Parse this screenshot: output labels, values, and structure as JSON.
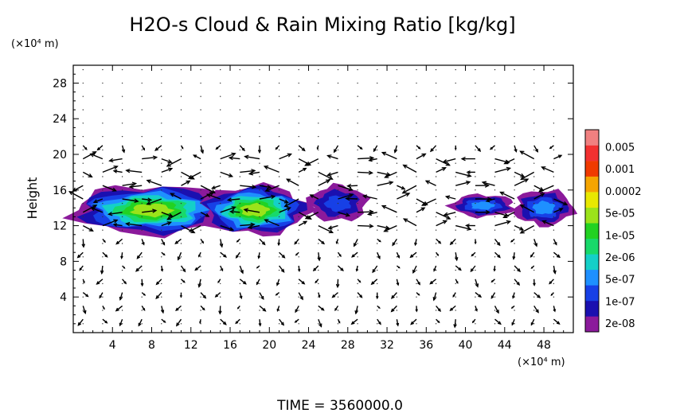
{
  "chart_data": {
    "type": "heatmap",
    "title": "H2O-s Cloud & Rain Mixing Ratio [kg/kg]",
    "ylabel": "Height",
    "y_unit": "(×10⁴ m)",
    "x_unit": "(×10⁴ m)",
    "xlim": [
      0,
      51
    ],
    "ylim": [
      0,
      30
    ],
    "x_ticks": [
      4,
      8,
      12,
      16,
      20,
      24,
      28,
      32,
      36,
      40,
      44,
      48
    ],
    "y_ticks": [
      4,
      8,
      12,
      16,
      20,
      24,
      28
    ],
    "grid": true,
    "footer": "TIME = 3560000.0",
    "colorbar": {
      "labels": [
        "2e-08",
        "1e-07",
        "5e-07",
        "2e-06",
        "1e-05",
        "5e-05",
        "0.0002",
        "0.001",
        "0.005"
      ],
      "colors": [
        "#8b1a9b",
        "#1a10b0",
        "#1740e6",
        "#1e90ff",
        "#14d0c8",
        "#18d96a",
        "#22d222",
        "#9be31a",
        "#e8e800",
        "#f5a500",
        "#f03a00",
        "#f23030",
        "#f08080"
      ]
    },
    "cloud_regions": [
      {
        "x": [
          0,
          16
        ],
        "y": [
          11,
          16.5
        ],
        "peak": "5e-05"
      },
      {
        "x": [
          13,
          24
        ],
        "y": [
          11,
          16.5
        ],
        "peak": "5e-05"
      },
      {
        "x": [
          24,
          30
        ],
        "y": [
          12.5,
          16.5
        ],
        "peak": "5e-07"
      },
      {
        "x": [
          38.5,
          45
        ],
        "y": [
          13,
          15.5
        ],
        "peak": "2e-06"
      },
      {
        "x": [
          45,
          51
        ],
        "y": [
          12,
          16
        ],
        "peak": "2e-06"
      }
    ]
  }
}
